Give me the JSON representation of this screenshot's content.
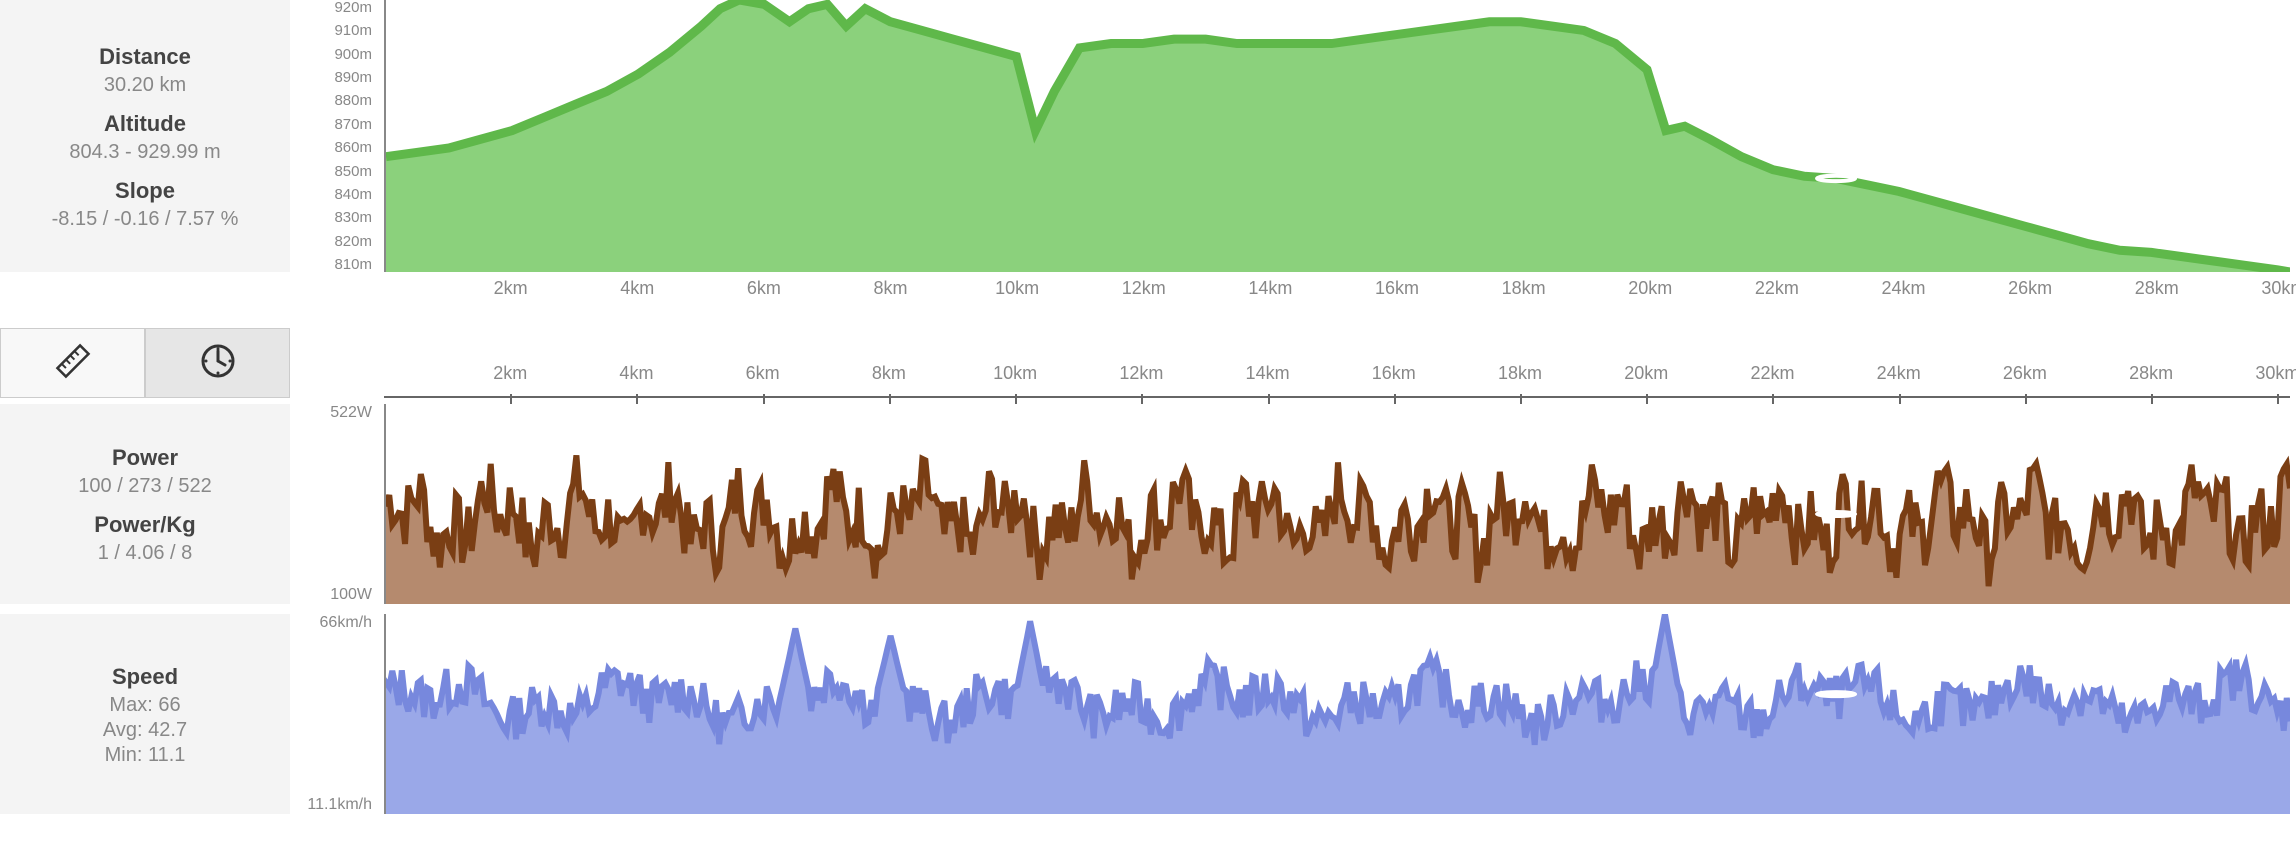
{
  "summary": {
    "distance_label": "Distance",
    "distance_value": "30.20 km",
    "altitude_label": "Altitude",
    "altitude_value": "804.3 - 929.99 m",
    "slope_label": "Slope",
    "slope_value": "-8.15 / -0.16 / 7.57 %"
  },
  "power_block": {
    "power_label": "Power",
    "power_value": "100 / 273 / 522",
    "powerkg_label": "Power/Kg",
    "powerkg_value": "1 / 4.06 / 8"
  },
  "speed_block": {
    "label": "Speed",
    "max": "Max: 66",
    "avg": "Avg: 42.7",
    "min": "Min: 11.1"
  },
  "elevation_chart": {
    "type": "area",
    "x_domain_km": [
      0,
      30.2
    ],
    "y_domain_m": [
      805,
      930
    ],
    "y_ticks": [
      "920m",
      "910m",
      "900m",
      "890m",
      "880m",
      "870m",
      "860m",
      "850m",
      "840m",
      "830m",
      "820m",
      "810m"
    ],
    "x_ticks_km": [
      2,
      4,
      6,
      8,
      10,
      12,
      14,
      16,
      18,
      20,
      22,
      24,
      26,
      28,
      30
    ],
    "fill_color": "#8bd17c",
    "stroke_color": "#5fb84a",
    "stroke_width": 3,
    "background": "#ffffff",
    "marker_km": 23,
    "marker_elev_m": 848,
    "marker_color": "#5fb84a",
    "data_km_elev": [
      [
        0,
        858
      ],
      [
        0.5,
        860
      ],
      [
        1,
        862
      ],
      [
        1.5,
        866
      ],
      [
        2,
        870
      ],
      [
        2.5,
        876
      ],
      [
        3,
        882
      ],
      [
        3.5,
        888
      ],
      [
        4,
        896
      ],
      [
        4.5,
        906
      ],
      [
        5,
        918
      ],
      [
        5.3,
        926
      ],
      [
        5.6,
        930
      ],
      [
        6,
        928
      ],
      [
        6.4,
        920
      ],
      [
        6.7,
        926
      ],
      [
        7,
        928
      ],
      [
        7.3,
        918
      ],
      [
        7.6,
        926
      ],
      [
        8,
        920
      ],
      [
        8.5,
        916
      ],
      [
        9,
        912
      ],
      [
        9.5,
        908
      ],
      [
        10,
        904
      ],
      [
        10.3,
        870
      ],
      [
        10.6,
        888
      ],
      [
        11,
        908
      ],
      [
        11.5,
        910
      ],
      [
        12,
        910
      ],
      [
        12.5,
        912
      ],
      [
        13,
        912
      ],
      [
        13.5,
        910
      ],
      [
        14,
        910
      ],
      [
        14.5,
        910
      ],
      [
        15,
        910
      ],
      [
        15.5,
        912
      ],
      [
        16,
        914
      ],
      [
        16.5,
        916
      ],
      [
        17,
        918
      ],
      [
        17.5,
        920
      ],
      [
        18,
        920
      ],
      [
        18.5,
        918
      ],
      [
        19,
        916
      ],
      [
        19.5,
        910
      ],
      [
        20,
        898
      ],
      [
        20.3,
        870
      ],
      [
        20.6,
        872
      ],
      [
        21,
        866
      ],
      [
        21.5,
        858
      ],
      [
        22,
        852
      ],
      [
        22.5,
        849
      ],
      [
        23,
        848
      ],
      [
        23.5,
        845
      ],
      [
        24,
        842
      ],
      [
        24.5,
        838
      ],
      [
        25,
        834
      ],
      [
        25.5,
        830
      ],
      [
        26,
        826
      ],
      [
        26.5,
        822
      ],
      [
        27,
        818
      ],
      [
        27.5,
        815
      ],
      [
        28,
        814
      ],
      [
        28.5,
        812
      ],
      [
        29,
        810
      ],
      [
        29.5,
        808
      ],
      [
        30,
        806
      ],
      [
        30.2,
        805
      ]
    ]
  },
  "power_chart": {
    "type": "area",
    "x_domain_km": [
      0,
      30.2
    ],
    "y_domain_w": [
      100,
      522
    ],
    "y_top_label": "522W",
    "y_bot_label": "100W",
    "fill_color": "#b58a6e",
    "stroke_color": "#7a3e14",
    "stroke_width": 2,
    "marker_km": 23,
    "marker_w": 290,
    "marker_color": "#7a3e14",
    "noise_amp_w": 160,
    "noise_freq": 140,
    "baseline_w": 280
  },
  "speed_chart": {
    "type": "area",
    "x_domain_km": [
      0,
      30.2
    ],
    "y_domain_kmh": [
      11.1,
      66
    ],
    "y_top_label": "66km/h",
    "y_bot_label": "11.1km/h",
    "fill_color": "#9aa8e8",
    "stroke_color": "#7788dd",
    "stroke_width": 2,
    "marker_km": 23,
    "marker_kmh": 44,
    "marker_color": "#7788dd",
    "noise_amp_kmh": 14,
    "noise_freq": 60,
    "baseline_kmh": 42,
    "peaks_km_kmh": [
      [
        6.5,
        62
      ],
      [
        8,
        60
      ],
      [
        10.2,
        64
      ],
      [
        20.3,
        66
      ]
    ]
  },
  "x_ticks_km_shared": [
    2,
    4,
    6,
    8,
    10,
    12,
    14,
    16,
    18,
    20,
    22,
    24,
    26,
    28,
    30
  ]
}
